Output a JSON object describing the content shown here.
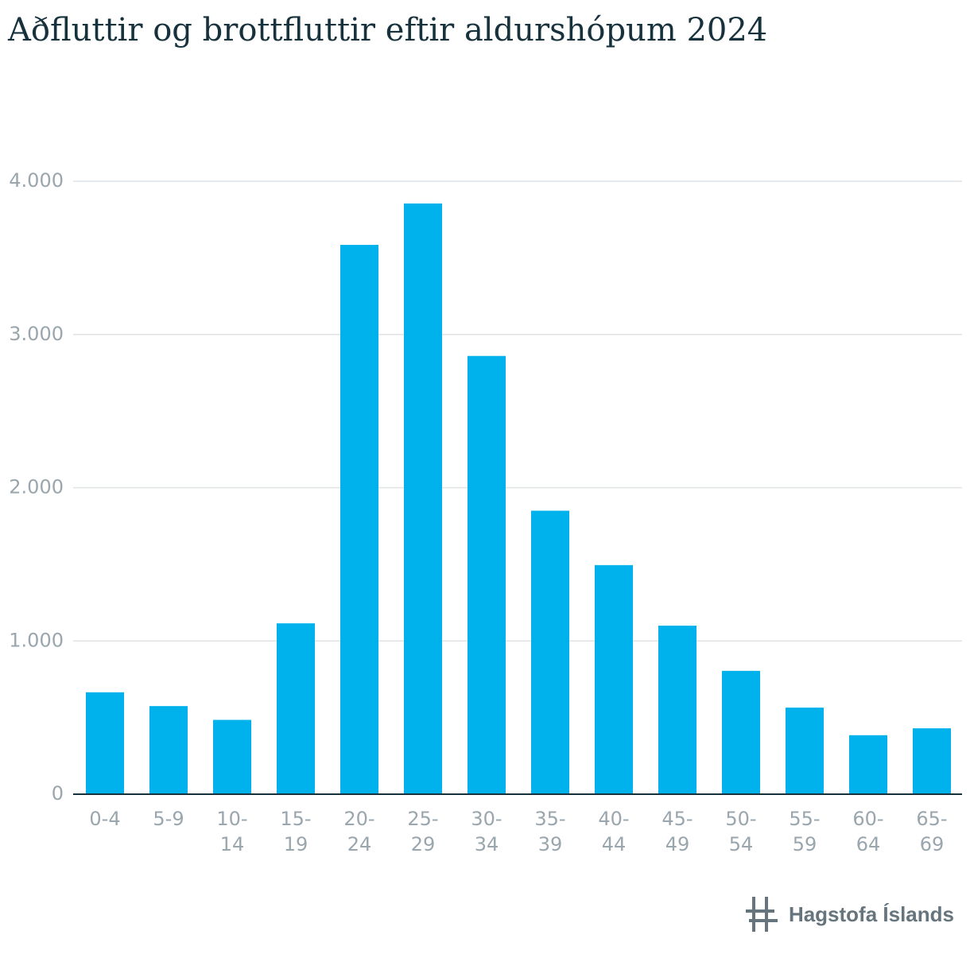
{
  "title": "Aðfluttir og brottfluttir eftir aldurshópum 2024",
  "logo": {
    "text": "Hagstofa Íslands",
    "icon": "hagstofa-logo-icon",
    "color": "#66757d"
  },
  "colors": {
    "bar": "#00b2eb",
    "grid": "#dfe3e6",
    "axis": "#17323d",
    "tick_text": "#9aa6ad"
  },
  "chart_data": {
    "type": "bar",
    "title": "Aðfluttir og brottfluttir eftir aldurshópum 2024",
    "xlabel": "",
    "ylabel": "",
    "categories": [
      [
        "0-4"
      ],
      [
        "5-9"
      ],
      [
        "10-",
        "14"
      ],
      [
        "15-",
        "19"
      ],
      [
        "20-",
        "24"
      ],
      [
        "25-",
        "29"
      ],
      [
        "30-",
        "34"
      ],
      [
        "35-",
        "39"
      ],
      [
        "40-",
        "44"
      ],
      [
        "45-",
        "49"
      ],
      [
        "50-",
        "54"
      ],
      [
        "55-",
        "59"
      ],
      [
        "60-",
        "64"
      ],
      [
        "65-",
        "69"
      ]
    ],
    "values": [
      665,
      575,
      485,
      1115,
      3585,
      3855,
      2860,
      1850,
      1495,
      1100,
      805,
      565,
      385,
      430
    ],
    "ylim": [
      0,
      4000
    ],
    "yticks": [
      {
        "value": 0,
        "label": "0"
      },
      {
        "value": 1000,
        "label": "1.000"
      },
      {
        "value": 2000,
        "label": "2.000"
      },
      {
        "value": 3000,
        "label": "3.000"
      },
      {
        "value": 4000,
        "label": "4.000"
      }
    ],
    "grid": true,
    "legend": "none"
  }
}
